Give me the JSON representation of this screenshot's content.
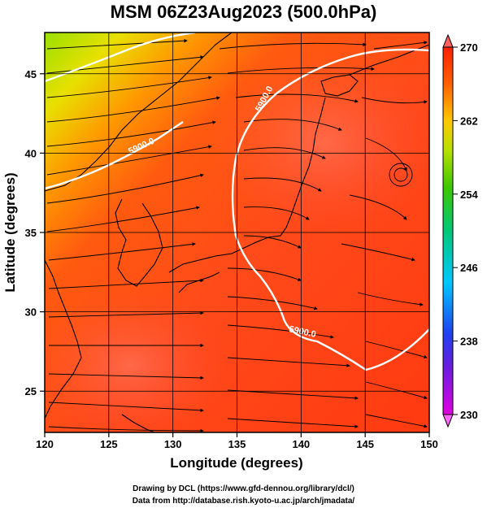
{
  "title": "MSM 06Z23Aug2023 (500.0hPa)",
  "credits": {
    "line1": "Drawing by DCL (https://www.gfd-dennou.org/library/dcl/)",
    "line2": "Data from http://database.rish.kyoto-u.ac.jp/arch/jmadata/"
  },
  "map": {
    "xlabel": "Longitude (degrees)",
    "ylabel": "Latitude  (degrees)",
    "lon_range": [
      120,
      150
    ],
    "lat_range": [
      22.4,
      47.6
    ],
    "x_ticks": [
      "120",
      "125",
      "130",
      "135",
      "140",
      "145",
      "150"
    ],
    "y_ticks": [
      "25",
      "30",
      "35",
      "40",
      "45"
    ],
    "grid": true,
    "contour_labels": [
      "5900.0",
      "5900.0",
      "5900.0"
    ]
  },
  "colorbar": {
    "min": 230,
    "max": 270,
    "ticks": [
      "230",
      "238",
      "246",
      "254",
      "262",
      "270"
    ],
    "colors": [
      "#e000e0",
      "#3030e0",
      "#00d0ff",
      "#00c060",
      "#a0e000",
      "#ffb000",
      "#ff4000",
      "#ff2000"
    ]
  }
}
